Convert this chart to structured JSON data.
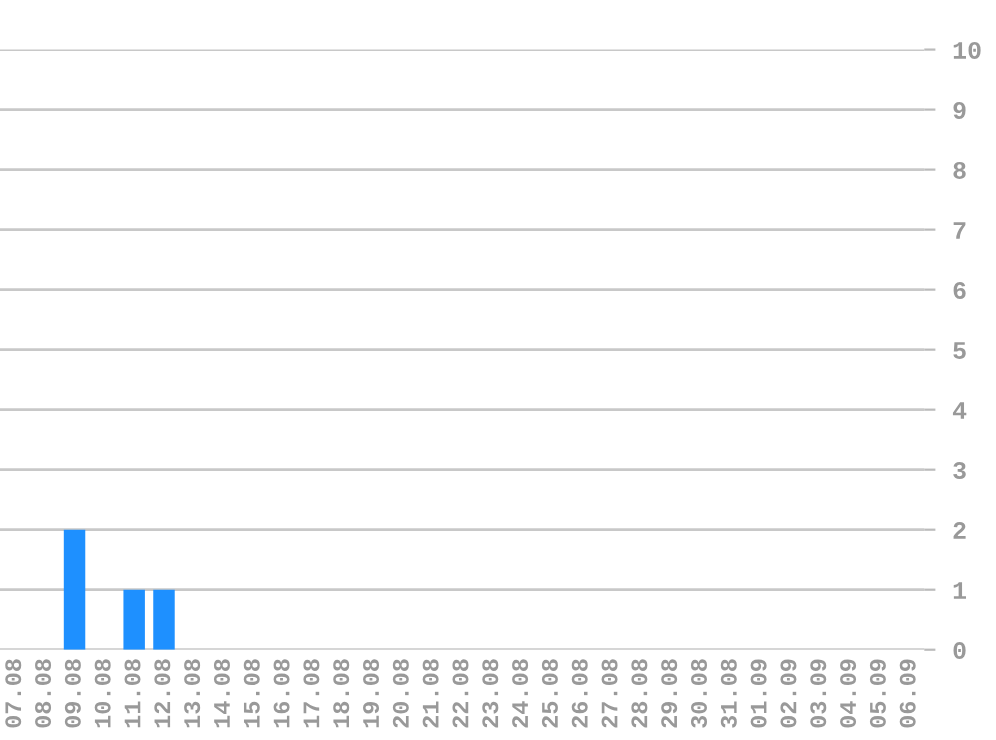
{
  "chart_data": {
    "type": "bar",
    "categories": [
      "07.08",
      "08.08",
      "09.08",
      "10.08",
      "11.08",
      "12.08",
      "13.08",
      "14.08",
      "15.08",
      "16.08",
      "17.08",
      "18.08",
      "19.08",
      "20.08",
      "21.08",
      "22.08",
      "23.08",
      "24.08",
      "25.08",
      "26.08",
      "27.08",
      "28.08",
      "29.08",
      "30.08",
      "31.08",
      "01.09",
      "02.09",
      "03.09",
      "04.09",
      "05.09",
      "06.09"
    ],
    "values": [
      0,
      0,
      2,
      0,
      1,
      1,
      0,
      0,
      0,
      0,
      0,
      0,
      0,
      0,
      0,
      0,
      0,
      0,
      0,
      0,
      0,
      0,
      0,
      0,
      0,
      0,
      0,
      0,
      0,
      0,
      0
    ],
    "color": "#1e90ff",
    "ylim": [
      0,
      10
    ],
    "yticks": [
      0,
      1,
      2,
      3,
      4,
      5,
      6,
      7,
      8,
      9,
      10
    ],
    "grid": "y"
  }
}
